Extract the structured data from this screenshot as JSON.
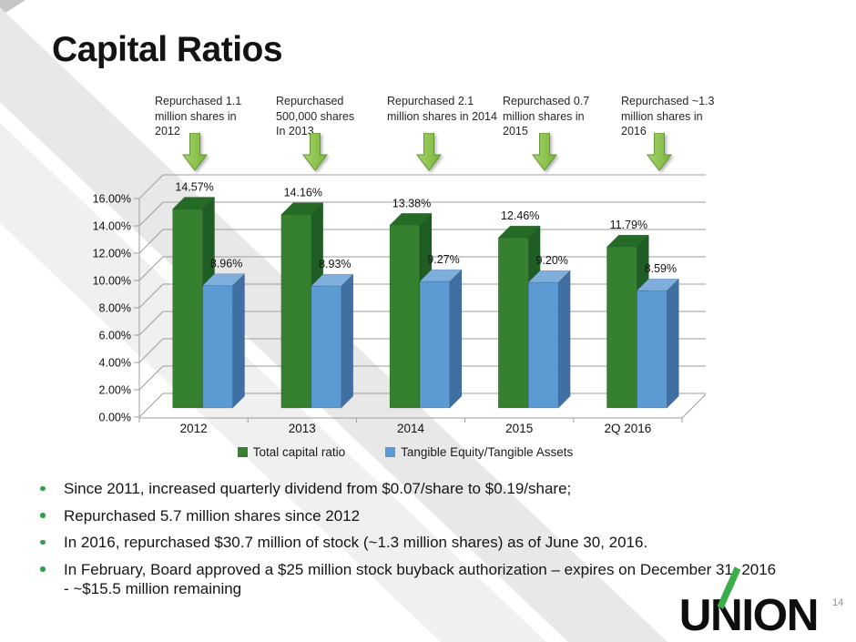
{
  "slide": {
    "title": "Capital Ratios",
    "page_number": "14",
    "logo_text": "UNION",
    "accent_green": "#3bae49",
    "arrow_green": "#8cc63f"
  },
  "annotations": [
    {
      "text": "Repurchased 1.1\nmillion shares in\n2012"
    },
    {
      "text": "Repurchased\n500,000 shares\nIn 2013"
    },
    {
      "text": "Repurchased  2.1\nmillion shares in 2014"
    },
    {
      "text": "Repurchased  0.7\nmillion shares in\n2015"
    },
    {
      "text": "Repurchased  ~1.3\nmillion shares in\n2016"
    }
  ],
  "chart_data": {
    "type": "bar",
    "style": "3d-column",
    "categories": [
      "2012",
      "2013",
      "2014",
      "2015",
      "2Q 2016"
    ],
    "series": [
      {
        "name": "Total capital ratio",
        "color": "#35812F",
        "color_top": "#256B26",
        "color_side": "#1E5E24",
        "values": [
          14.57,
          14.16,
          13.38,
          12.46,
          11.79
        ]
      },
      {
        "name": "Tangible Equity/Tangible Assets",
        "color": "#5B9AD3",
        "color_top": "#7FAEDD",
        "color_side": "#3F6FA3",
        "values": [
          8.96,
          8.93,
          9.27,
          9.2,
          8.59
        ]
      }
    ],
    "data_labels": [
      "14.57%",
      "14.16%",
      "13.38%",
      "12.46%",
      "11.79%",
      "8.96%",
      "8.93%",
      "9.27%",
      "9.20%",
      "8.59%"
    ],
    "yticks": [
      "0.00%",
      "2.00%",
      "4.00%",
      "6.00%",
      "8.00%",
      "10.00%",
      "12.00%",
      "14.00%",
      "16.00%"
    ],
    "ylim": [
      0,
      16
    ],
    "ytick_step": 2,
    "grid": true,
    "legend_position": "bottom",
    "xlabel": "",
    "ylabel": ""
  },
  "bullets": [
    "Since 2011, increased quarterly dividend from $0.07/share to $0.19/share;",
    "Repurchased 5.7 million shares since 2012",
    "In 2016, repurchased $30.7 million of stock (~1.3 million shares) as of June 30, 2016.",
    "In February, Board approved a $25 million stock buyback authorization – expires on December 31, 2016\n- ~$15.5 million remaining"
  ]
}
